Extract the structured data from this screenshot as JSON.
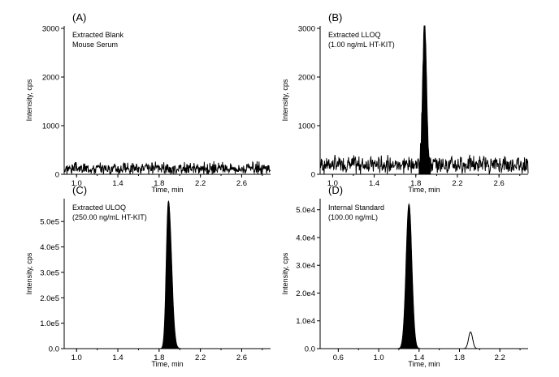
{
  "chart_data": [
    {
      "type": "line",
      "panel_label": "(A)",
      "annotation": [
        "Extracted Blank",
        "Mouse Serum"
      ],
      "xlabel": "Time, min",
      "ylabel": "Intensity, cps",
      "xlim": [
        0.88,
        2.88
      ],
      "ylim": [
        0,
        3050
      ],
      "xticks": [
        1.0,
        1.4,
        1.8,
        2.2,
        2.6
      ],
      "xtick_labels": [
        "1.0",
        "1.4",
        "1.8",
        "2.2",
        "2.6"
      ],
      "yticks": [
        0,
        1000,
        2000,
        3000
      ],
      "ytick_labels": [
        "0",
        "1000",
        "2000",
        "3000"
      ],
      "noise": {
        "base": 120,
        "amp": 110,
        "seed": 3
      },
      "peaks": []
    },
    {
      "type": "line",
      "panel_label": "(B)",
      "annotation": [
        "Extracted LLOQ",
        "(1.00 ng/mL HT-KIT)"
      ],
      "xlabel": "Time, min",
      "ylabel": "Intensity, cps",
      "xlim": [
        0.88,
        2.88
      ],
      "ylim": [
        0,
        3050
      ],
      "xticks": [
        1.0,
        1.4,
        1.8,
        2.2,
        2.6
      ],
      "xtick_labels": [
        "1.0",
        "1.4",
        "1.8",
        "2.2",
        "2.6"
      ],
      "yticks": [
        0,
        1000,
        2000,
        3000
      ],
      "ytick_labels": [
        "0",
        "1000",
        "2000",
        "3000"
      ],
      "noise": {
        "base": 200,
        "amp": 160,
        "seed": 7
      },
      "peaks": [
        {
          "center": 1.885,
          "height": 2900,
          "width": 0.018,
          "filled": true
        }
      ]
    },
    {
      "type": "line",
      "panel_label": "(C)",
      "annotation": [
        "Extracted ULOQ",
        "(250.00 ng/mL HT-KIT)"
      ],
      "xlabel": "Time, min",
      "ylabel": "Intensity, cps",
      "xlim": [
        0.88,
        2.88
      ],
      "ylim": [
        0,
        590000
      ],
      "xticks": [
        1.0,
        1.4,
        1.8,
        2.2,
        2.6
      ],
      "xtick_labels": [
        "1.0",
        "1.4",
        "1.8",
        "2.2",
        "2.6"
      ],
      "yticks": [
        0,
        100000,
        200000,
        300000,
        400000,
        500000
      ],
      "ytick_labels": [
        "0.0",
        "1.0e5",
        "2.0e5",
        "3.0e5",
        "4.0e5",
        "5.0e5"
      ],
      "noise": {
        "base": 0,
        "amp": 0,
        "seed": 1
      },
      "peaks": [
        {
          "center": 1.89,
          "height": 580000,
          "width": 0.02,
          "filled": true,
          "tail": 0.06
        }
      ]
    },
    {
      "type": "line",
      "panel_label": "(D)",
      "annotation": [
        "Internal Standard",
        "(100.00 ng/mL)"
      ],
      "xlabel": "Time, min",
      "ylabel": "Intensity, cps",
      "xlim": [
        0.42,
        2.48
      ],
      "ylim": [
        0,
        54000
      ],
      "xticks": [
        0.6,
        1.0,
        1.4,
        1.8,
        2.2
      ],
      "xtick_labels": [
        "0.6",
        "1.0",
        "1.4",
        "1.8",
        "2.2"
      ],
      "yticks": [
        0,
        10000,
        20000,
        30000,
        40000,
        50000
      ],
      "ytick_labels": [
        "0.0",
        "1.0e4",
        "2.0e4",
        "3.0e4",
        "4.0e4",
        "5.0e4"
      ],
      "noise": {
        "base": 0,
        "amp": 0,
        "seed": 1
      },
      "peaks": [
        {
          "center": 1.3,
          "height": 52000,
          "width": 0.028,
          "filled": true
        },
        {
          "center": 1.91,
          "height": 6000,
          "width": 0.02,
          "filled": false
        }
      ]
    }
  ]
}
